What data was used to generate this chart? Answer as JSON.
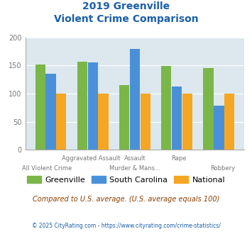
{
  "title_line1": "2019 Greenville",
  "title_line2": "Violent Crime Comparison",
  "greenville": [
    152,
    157,
    115,
    149,
    145
  ],
  "south_carolina": [
    135,
    156,
    180,
    113,
    78
  ],
  "national": [
    100,
    100,
    100,
    100,
    100
  ],
  "color_greenville": "#7ab648",
  "color_sc": "#4a90d9",
  "color_national": "#f5a623",
  "ylim": [
    0,
    200
  ],
  "yticks": [
    0,
    50,
    100,
    150,
    200
  ],
  "bg_color": "#dce8ee",
  "subtitle": "Compared to U.S. average. (U.S. average equals 100)",
  "footer": "© 2025 CityRating.com - https://www.cityrating.com/crime-statistics/",
  "legend_labels": [
    "Greenville",
    "South Carolina",
    "National"
  ],
  "x_labels_row1": [
    "",
    "Aggravated Assault",
    "Assault",
    "Rape",
    ""
  ],
  "x_labels_row2": [
    "All Violent Crime",
    "",
    "Murder & Mans...",
    "",
    "Robbery"
  ],
  "title_color": "#1a5fa8",
  "subtitle_color": "#8b4000",
  "footer_color": "#1a5fa8",
  "tick_color": "#777777"
}
